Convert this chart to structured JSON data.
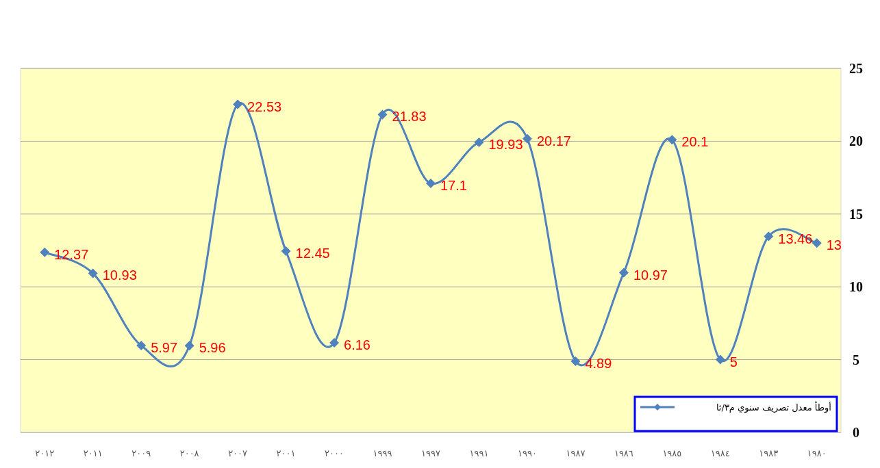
{
  "chart_data": {
    "type": "line",
    "categories": [
      "٢٠١٢",
      "٢٠١١",
      "٢٠٠٩",
      "٢٠٠٨",
      "٢٠٠٧",
      "٢٠٠١",
      "٢٠٠٠",
      "١٩٩٩",
      "١٩٩٧",
      "١٩٩١",
      "١٩٩٠",
      "١٩٨٧",
      "١٩٨٦",
      "١٩٨٥",
      "١٩٨٤",
      "١٩٨٣",
      "١٩٨٠"
    ],
    "series": [
      {
        "name": "أوطأ معدل تصريف سنوي م٣/ثا",
        "color": "#4f81bd",
        "values": [
          12.37,
          10.93,
          5.97,
          5.96,
          22.53,
          12.45,
          6.16,
          21.83,
          17.1,
          19.93,
          20.17,
          4.89,
          10.97,
          20.1,
          5,
          13.46,
          13
        ]
      }
    ],
    "ylim": [
      0,
      25
    ],
    "yticks": [
      0,
      5,
      10,
      15,
      20,
      25
    ],
    "grid": "y",
    "legend": "bottom right",
    "marker": "diamond",
    "line_style": "solid",
    "data_labels": true
  }
}
